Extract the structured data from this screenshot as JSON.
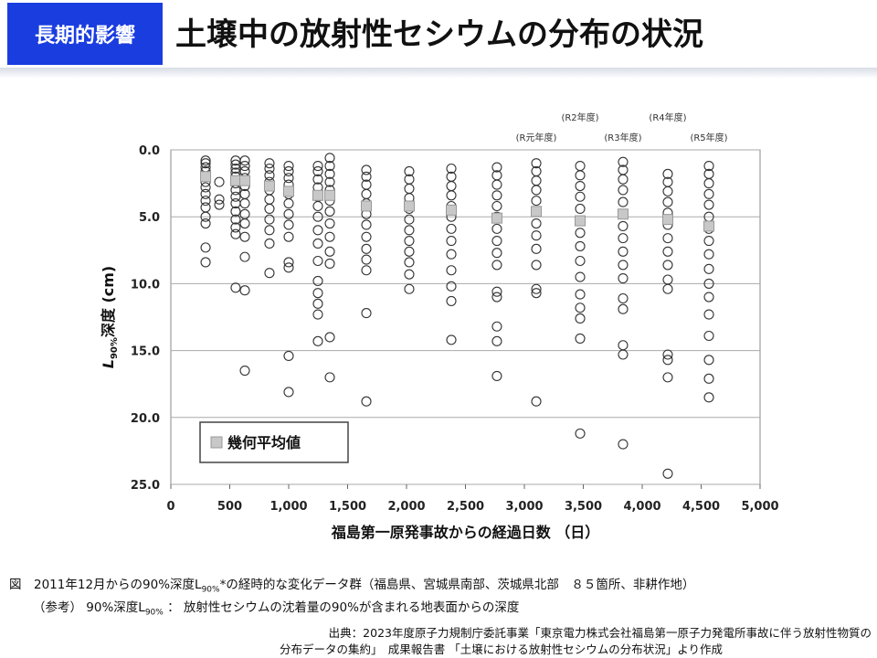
{
  "header": {
    "badge": "長期的影響",
    "title": "土壌中の放射性セシウムの分布の状況"
  },
  "chart_data": {
    "type": "scatter",
    "ylabel": {
      "main": "L",
      "sub": "90%",
      "rest": "深度 (cm)"
    },
    "xlabel": "福島第一原発事故からの経過日数 （日）",
    "xlim": [
      0,
      5000
    ],
    "xticks": [
      0,
      500,
      {
        "value": 1000,
        "label": "1,000"
      },
      {
        "value": 1500,
        "label": "1,500"
      },
      {
        "value": 2000,
        "label": "2,000"
      },
      {
        "value": 2500,
        "label": "2,500"
      },
      {
        "value": 3000,
        "label": "3,000"
      },
      {
        "value": 3500,
        "label": "3,500"
      },
      {
        "value": 4000,
        "label": "4,000"
      },
      {
        "value": 4500,
        "label": "4,500"
      },
      {
        "value": 5000,
        "label": "5,000"
      }
    ],
    "ylim": [
      0,
      25
    ],
    "y_inverted": true,
    "yticks": [
      {
        "value": 0,
        "label": "0.0"
      },
      {
        "value": 5,
        "label": "5.0"
      },
      {
        "value": 10,
        "label": "10.0"
      },
      {
        "value": 15,
        "label": "15.0"
      },
      {
        "value": 20,
        "label": "20.0"
      },
      {
        "value": 25,
        "label": "25.0"
      }
    ],
    "grid": true,
    "legend": "lower left",
    "annotations": [
      {
        "text": "(R元年度)",
        "x": 3101
      },
      {
        "text": "(R2年度)",
        "x": 3473
      },
      {
        "text": "(R3年度)",
        "x": 3837
      },
      {
        "text": "(R4年度)",
        "x": 4217
      },
      {
        "text": "(R5年度)",
        "x": 4566
      }
    ],
    "series": [
      {
        "color": "#333333",
        "x": [
          295,
          295,
          295,
          295,
          295,
          295,
          295,
          295,
          295,
          295,
          295,
          295,
          295,
          295,
          411,
          411,
          411,
          550,
          550,
          550,
          550,
          550,
          550,
          550,
          550,
          550,
          550,
          550,
          550,
          550,
          550,
          628,
          628,
          628,
          628,
          628,
          628,
          628,
          628,
          628,
          628,
          628,
          628,
          628,
          837,
          837,
          837,
          837,
          837,
          837,
          837,
          837,
          837,
          837,
          837,
          1000,
          1000,
          1000,
          1000,
          1000,
          1000,
          1000,
          1000,
          1000,
          1000,
          1000,
          1000,
          1000,
          1248,
          1248,
          1248,
          1248,
          1248,
          1248,
          1248,
          1248,
          1248,
          1248,
          1248,
          1248,
          1248,
          1248,
          1248,
          1349,
          1349,
          1349,
          1349,
          1349,
          1349,
          1349,
          1349,
          1349,
          1349,
          1349,
          1349,
          1349,
          1659,
          1659,
          1659,
          1659,
          1659,
          1659,
          1659,
          1659,
          1659,
          1659,
          1659,
          1659,
          1659,
          2023,
          2023,
          2023,
          2023,
          2023,
          2023,
          2023,
          2023,
          2023,
          2023,
          2023,
          2023,
          2380,
          2380,
          2380,
          2380,
          2380,
          2380,
          2380,
          2380,
          2380,
          2380,
          2380,
          2380,
          2380,
          2767,
          2767,
          2767,
          2767,
          2767,
          2767,
          2767,
          2767,
          2767,
          2767,
          2767,
          2767,
          2767,
          2767,
          2767,
          3101,
          3101,
          3101,
          3101,
          3101,
          3101,
          3101,
          3101,
          3101,
          3101,
          3101,
          3101,
          3101,
          3473,
          3473,
          3473,
          3473,
          3473,
          3473,
          3473,
          3473,
          3473,
          3473,
          3473,
          3473,
          3473,
          3473,
          3473,
          3837,
          3837,
          3837,
          3837,
          3837,
          3837,
          3837,
          3837,
          3837,
          3837,
          3837,
          3837,
          3837,
          3837,
          3837,
          3837,
          4217,
          4217,
          4217,
          4217,
          4217,
          4217,
          4217,
          4217,
          4217,
          4217,
          4217,
          4217,
          4217,
          4217,
          4217,
          4566,
          4566,
          4566,
          4566,
          4566,
          4566,
          4566,
          4566,
          4566,
          4566,
          4566,
          4566,
          4566,
          4566,
          4566,
          4566,
          4566
        ],
        "values": [
          0.8,
          1.0,
          1.3,
          1.6,
          2.0,
          2.4,
          2.8,
          3.3,
          3.8,
          4.3,
          5.0,
          5.5,
          7.3,
          8.4,
          2.4,
          3.7,
          4.1,
          0.8,
          1.1,
          1.4,
          1.7,
          2.0,
          2.5,
          3.0,
          3.5,
          4.0,
          4.6,
          5.2,
          5.8,
          6.3,
          10.3,
          0.8,
          1.2,
          1.6,
          2.1,
          2.7,
          3.3,
          4.0,
          4.8,
          5.5,
          6.5,
          8.0,
          10.5,
          16.5,
          1.0,
          1.4,
          1.9,
          2.4,
          3.0,
          3.7,
          4.4,
          5.2,
          6.0,
          7.0,
          9.2,
          1.2,
          1.6,
          2.1,
          2.6,
          3.3,
          4.0,
          4.8,
          5.6,
          6.5,
          8.4,
          8.8,
          15.4,
          18.1,
          1.2,
          1.6,
          2.2,
          2.8,
          3.5,
          4.2,
          5.0,
          6.0,
          7.0,
          8.3,
          9.8,
          10.7,
          11.5,
          12.3,
          14.3,
          0.6,
          1.2,
          1.8,
          2.4,
          3.0,
          3.8,
          4.6,
          5.5,
          6.5,
          7.6,
          8.5,
          14.0,
          17.0,
          1.5,
          2.0,
          2.6,
          3.3,
          4.0,
          4.8,
          5.6,
          6.5,
          7.4,
          8.2,
          9.0,
          12.2,
          18.8,
          1.6,
          2.2,
          2.9,
          3.6,
          4.4,
          5.2,
          6.0,
          6.8,
          7.6,
          8.4,
          9.3,
          10.4,
          1.4,
          2.0,
          2.7,
          3.4,
          4.2,
          5.0,
          5.9,
          6.8,
          7.8,
          9.0,
          10.2,
          11.3,
          14.2,
          1.3,
          1.9,
          2.6,
          3.4,
          4.2,
          5.0,
          5.9,
          6.8,
          7.7,
          8.6,
          10.6,
          11.0,
          13.2,
          14.3,
          16.9,
          1.0,
          1.6,
          2.3,
          3.0,
          3.8,
          4.6,
          5.5,
          6.4,
          7.4,
          8.6,
          10.4,
          10.7,
          18.8,
          1.2,
          1.9,
          2.7,
          3.5,
          4.4,
          5.3,
          6.2,
          7.2,
          8.3,
          9.5,
          10.8,
          11.8,
          12.6,
          14.1,
          21.2,
          0.9,
          1.5,
          2.2,
          3.0,
          3.9,
          4.8,
          5.7,
          6.6,
          7.6,
          8.6,
          9.6,
          11.1,
          11.9,
          14.6,
          15.3,
          22.0,
          1.8,
          2.4,
          3.1,
          3.9,
          4.7,
          5.6,
          6.6,
          7.6,
          8.6,
          9.7,
          10.4,
          15.3,
          15.7,
          17.0,
          24.2,
          1.2,
          1.8,
          2.5,
          3.3,
          4.1,
          5.0,
          5.9,
          6.8,
          7.8,
          8.9,
          10.0,
          11.0,
          12.3,
          13.9,
          15.7,
          17.1,
          18.5
        ]
      },
      {
        "name": "幾何平均値",
        "color": "#c8c8c8",
        "x": [
          295,
          550,
          628,
          837,
          1000,
          1248,
          1349,
          1659,
          2023,
          2380,
          2767,
          3101,
          3473,
          3837,
          4217,
          4566
        ],
        "values": [
          2.0,
          2.3,
          2.3,
          2.7,
          3.1,
          3.4,
          3.4,
          4.2,
          4.2,
          4.5,
          5.1,
          4.6,
          5.3,
          4.8,
          5.2,
          5.7
        ]
      }
    ]
  },
  "caption": {
    "line1": {
      "before": "図　2011年12月からの90%深度L",
      "sub": "90%",
      "after": "*の経時的な変化データ群（福島県、宮城県南部、茨城県北部　８５箇所、非耕作地）"
    },
    "line2": {
      "before": "（参考） 90%深度L",
      "sub": "90%",
      "after": " ： 放射性セシウムの沈着量の90%が含まれる地表面からの深度"
    },
    "source1": "出典：2023年度原子力規制庁委託事業「東京電力株式会社福島第一原子力発電所事故に伴う放射性物質の",
    "source2": "分布データの集約」　成果報告書 「土壌における放射性セシウムの分布状況」より作成"
  }
}
